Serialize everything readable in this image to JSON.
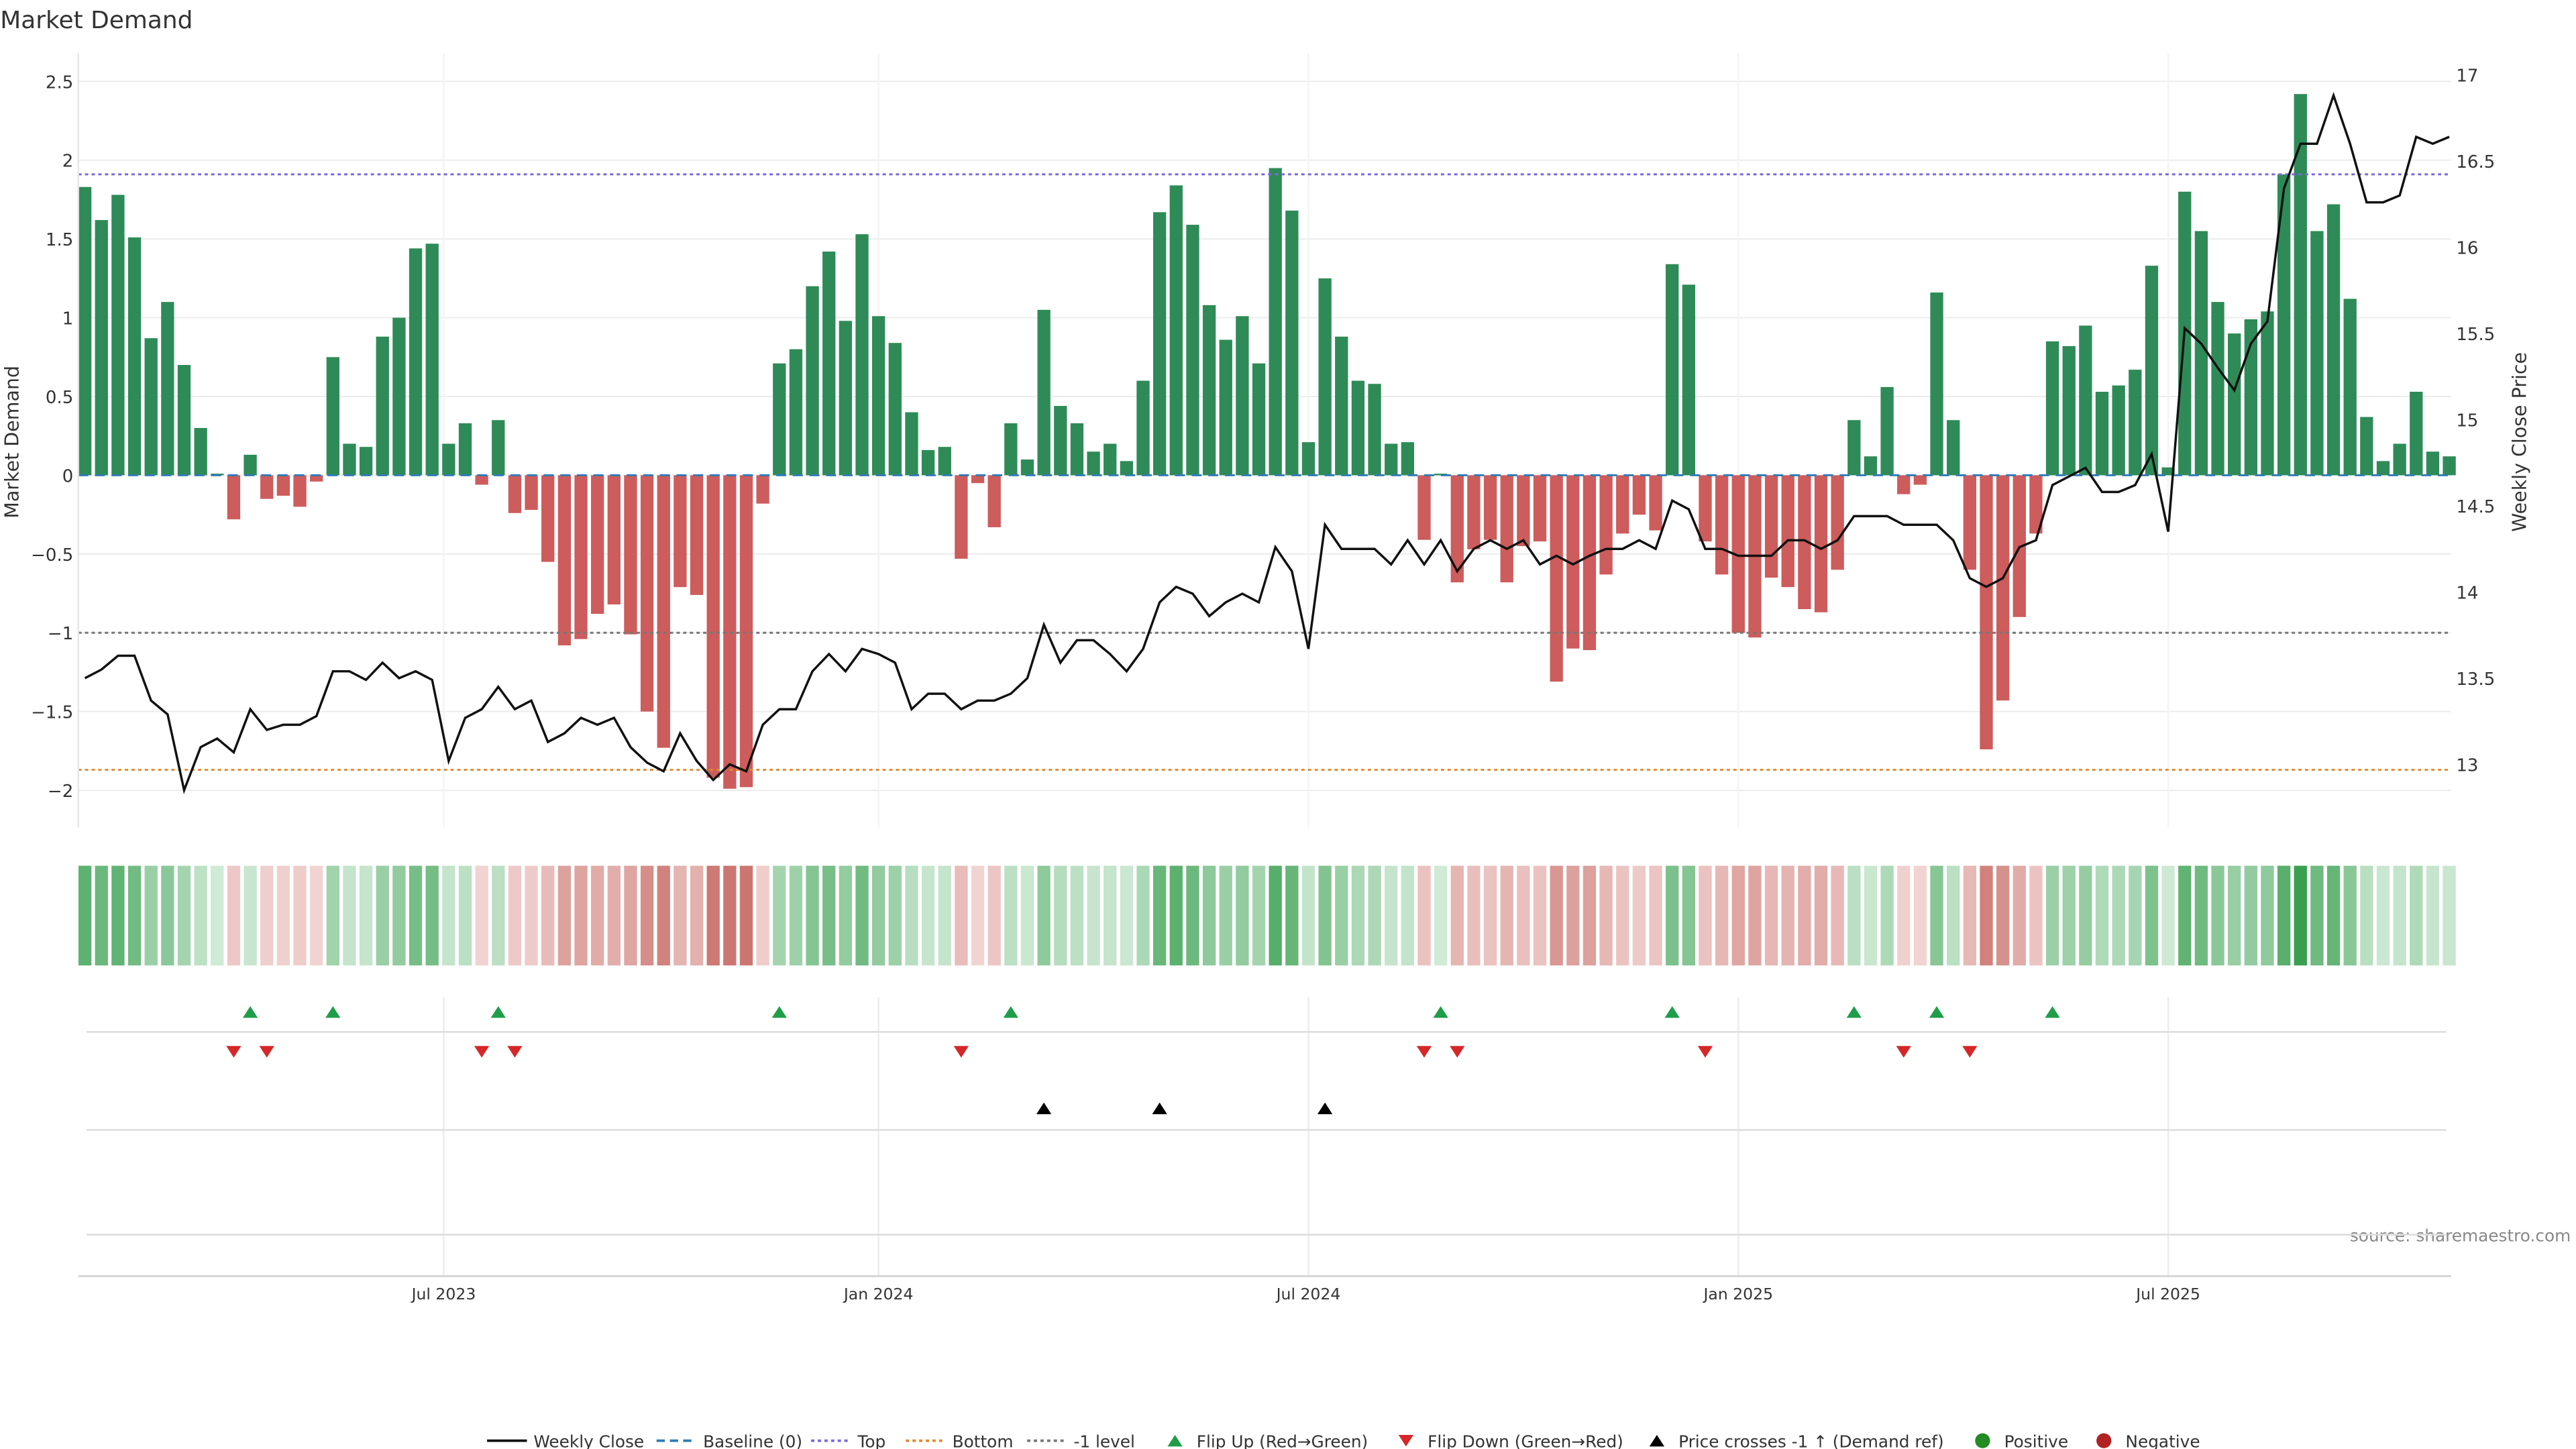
{
  "chart_data": {
    "type": "bar",
    "title": "Market Demand",
    "ylabel": "Market Demand",
    "y2label": "Weekly Close Price",
    "ylim": [
      -2.2,
      2.65
    ],
    "y2lim": [
      12.8,
      17.05
    ],
    "yticks": [
      2.5,
      2,
      1.5,
      1,
      0.5,
      0,
      -0.5,
      -1,
      -1.5,
      -2
    ],
    "yticklabels": [
      "2.5",
      "2",
      "1.5",
      "1",
      "0.5",
      "0",
      "−0.5",
      "−1",
      "−1.5",
      "−2"
    ],
    "y2ticks": [
      17,
      16.5,
      16,
      15.5,
      15,
      14.5,
      14,
      13.5,
      13
    ],
    "y2ticklabels": [
      "17",
      "16.5",
      "16",
      "15.5",
      "15",
      "14.5",
      "14",
      "13.5",
      "13"
    ],
    "xticks": [
      {
        "week": 21.7,
        "label": "Jul 2023"
      },
      {
        "week": 48,
        "label": "Jan 2024"
      },
      {
        "week": 74,
        "label": "Jul 2024"
      },
      {
        "week": 100,
        "label": "Jan 2025"
      },
      {
        "week": 126,
        "label": "Jul 2025"
      }
    ],
    "reference_lines": {
      "top": 1.91,
      "bottom": -1.87,
      "minus_one": -1,
      "baseline": 0
    },
    "demand": [
      1.83,
      1.62,
      1.78,
      1.51,
      0.87,
      1.1,
      0.7,
      0.3,
      0.01,
      -0.28,
      0.13,
      -0.15,
      -0.13,
      -0.2,
      -0.04,
      0.75,
      0.2,
      0.18,
      0.88,
      1.0,
      1.44,
      1.47,
      0.2,
      0.33,
      -0.06,
      0.35,
      -0.24,
      -0.22,
      -0.55,
      -1.08,
      -1.04,
      -0.88,
      -0.82,
      -1.01,
      -1.5,
      -1.73,
      -0.71,
      -0.76,
      -1.92,
      -1.99,
      -1.98,
      -0.18,
      0.71,
      0.8,
      1.2,
      1.42,
      0.98,
      1.53,
      1.01,
      0.84,
      0.4,
      0.16,
      0.18,
      -0.53,
      -0.05,
      -0.33,
      0.33,
      0.1,
      1.05,
      0.44,
      0.33,
      0.15,
      0.2,
      0.09,
      0.6,
      1.67,
      1.84,
      1.59,
      1.08,
      0.86,
      1.01,
      0.71,
      1.95,
      1.68,
      0.21,
      1.25,
      0.88,
      0.6,
      0.58,
      0.2,
      0.21,
      -0.41,
      0.01,
      -0.68,
      -0.47,
      -0.41,
      -0.68,
      -0.45,
      -0.42,
      -1.31,
      -1.1,
      -1.11,
      -0.63,
      -0.37,
      -0.25,
      -0.35,
      1.34,
      1.21,
      -0.42,
      -0.63,
      -1.0,
      -1.03,
      -0.65,
      -0.71,
      -0.85,
      -0.87,
      -0.6,
      0.35,
      0.12,
      0.56,
      -0.12,
      -0.06,
      1.16,
      0.35,
      -0.6,
      -1.74,
      -1.43,
      -0.9,
      -0.37,
      0.85,
      0.82,
      0.95,
      0.53,
      0.57,
      0.67,
      1.33,
      0.05,
      1.8,
      1.55,
      1.1,
      0.9,
      0.99,
      1.04,
      1.91,
      2.42,
      1.55,
      1.72,
      1.12,
      0.37,
      0.09,
      0.2,
      0.53,
      0.15,
      0.12
    ],
    "weekly_close": [
      13.5,
      13.55,
      13.63,
      13.63,
      13.37,
      13.29,
      12.85,
      13.1,
      13.15,
      13.07,
      13.32,
      13.2,
      13.23,
      13.23,
      13.28,
      13.54,
      13.54,
      13.49,
      13.59,
      13.5,
      13.54,
      13.49,
      13.02,
      13.27,
      13.32,
      13.45,
      13.32,
      13.37,
      13.13,
      13.18,
      13.27,
      13.23,
      13.27,
      13.1,
      13.01,
      12.96,
      13.18,
      13.02,
      12.91,
      13.0,
      12.96,
      13.23,
      13.32,
      13.32,
      13.54,
      13.64,
      13.54,
      13.67,
      13.64,
      13.59,
      13.32,
      13.41,
      13.41,
      13.32,
      13.37,
      13.37,
      13.41,
      13.5,
      13.81,
      13.59,
      13.72,
      13.72,
      13.64,
      13.54,
      13.67,
      13.94,
      14.03,
      13.99,
      13.86,
      13.94,
      13.99,
      13.94,
      14.26,
      14.12,
      13.67,
      14.39,
      14.25,
      14.25,
      14.25,
      14.16,
      14.3,
      14.16,
      14.3,
      14.12,
      14.25,
      14.3,
      14.25,
      14.3,
      14.16,
      14.21,
      14.16,
      14.21,
      14.25,
      14.25,
      14.3,
      14.25,
      14.53,
      14.48,
      14.25,
      14.25,
      14.21,
      14.21,
      14.21,
      14.3,
      14.3,
      14.25,
      14.3,
      14.44,
      14.44,
      14.44,
      14.39,
      14.39,
      14.39,
      14.3,
      14.08,
      14.03,
      14.08,
      14.26,
      14.3,
      14.62,
      14.67,
      14.72,
      14.58,
      14.58,
      14.62,
      14.8,
      14.35,
      15.53,
      15.44,
      15.3,
      15.17,
      15.44,
      15.57,
      16.34,
      16.6,
      16.6,
      16.88,
      16.6,
      16.26,
      16.26,
      16.3,
      16.64,
      16.6,
      16.64
    ],
    "flip_up_weeks": [
      10,
      15,
      25,
      42,
      56,
      82,
      96,
      107,
      112,
      119
    ],
    "flip_down_weeks": [
      9,
      11,
      24,
      26,
      53,
      81,
      83,
      98,
      110,
      114
    ],
    "price_cross_weeks": [
      58,
      65,
      75
    ],
    "source": "source: sharemaestro.com",
    "legend": [
      {
        "label": "Weekly Close",
        "kind": "line",
        "color": "#111111"
      },
      {
        "label": "Baseline (0)",
        "kind": "dash",
        "color": "#2e7bb5"
      },
      {
        "label": "Top",
        "kind": "dot",
        "color": "#7b68d8"
      },
      {
        "label": "Bottom",
        "kind": "dot",
        "color": "#e08a2e"
      },
      {
        "label": "-1 level",
        "kind": "dot",
        "color": "#777777"
      },
      {
        "label": "Flip Up (Red→Green)",
        "kind": "up",
        "color": "#1f9e4a"
      },
      {
        "label": "Flip Down (Green→Red)",
        "kind": "down",
        "color": "#d62728"
      },
      {
        "label": "Price crosses -1 ↑ (Demand ref)",
        "kind": "up",
        "color": "#000000"
      },
      {
        "label": "Positive",
        "kind": "circle",
        "color": "#228b22"
      },
      {
        "label": "Negative",
        "kind": "circle",
        "color": "#b22222"
      }
    ],
    "colors": {
      "positive": "#2e8b57",
      "negative": "#cd5c5c",
      "price": "#111111"
    }
  }
}
